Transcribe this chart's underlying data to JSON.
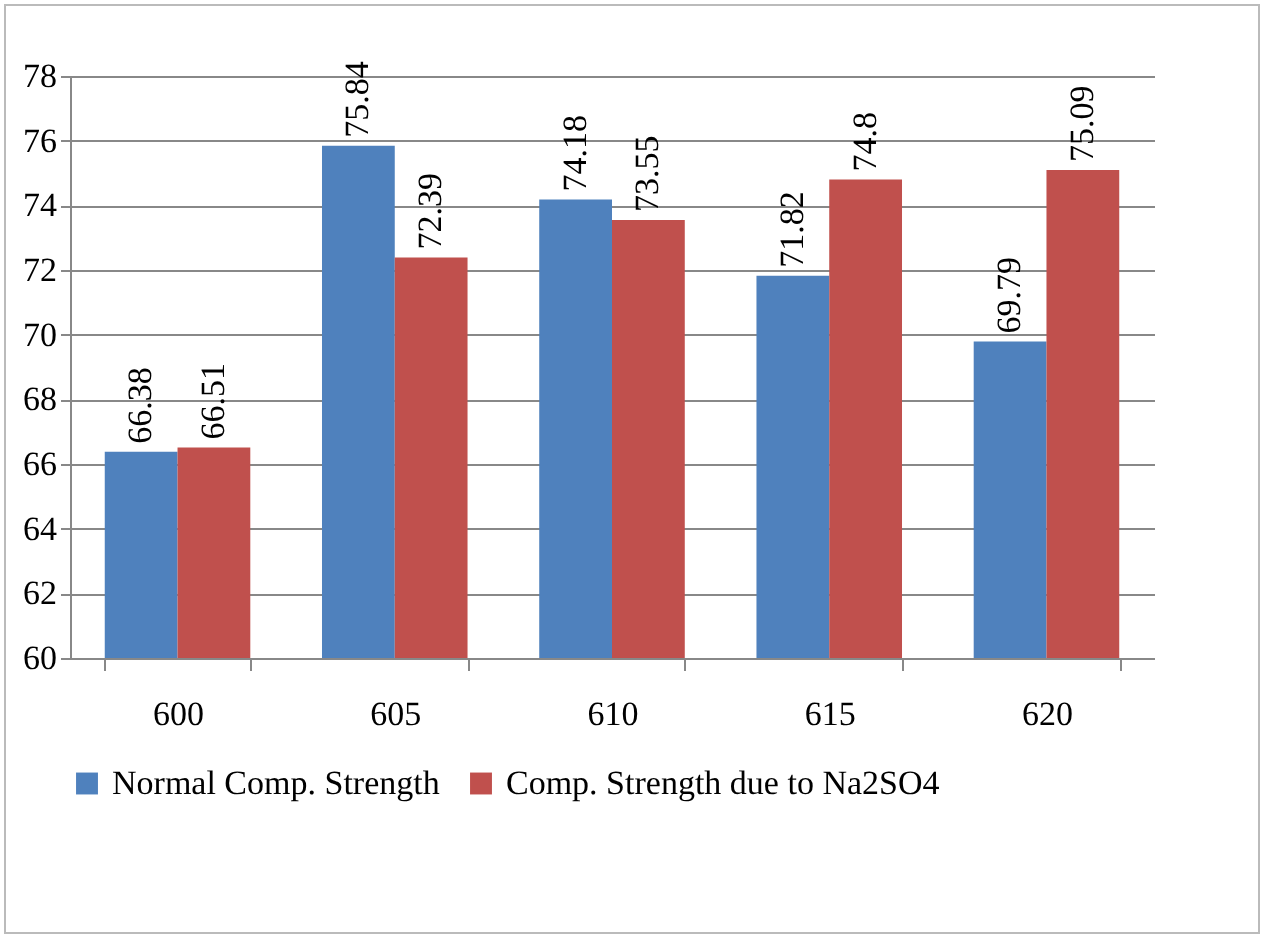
{
  "chart_data": {
    "type": "bar",
    "categories": [
      "600",
      "605",
      "610",
      "615",
      "620"
    ],
    "series": [
      {
        "name": "Normal Comp. Strength",
        "color": "#4f81bd",
        "values": [
          66.38,
          75.84,
          74.18,
          71.82,
          69.79
        ]
      },
      {
        "name": "Comp. Strength due to Na2SO4",
        "color": "#c0504d",
        "values": [
          66.51,
          72.39,
          73.55,
          74.8,
          75.09
        ]
      }
    ],
    "ylim": [
      60,
      78
    ],
    "yticks": [
      60,
      62,
      64,
      66,
      68,
      70,
      72,
      74,
      76,
      78
    ],
    "grid": "y",
    "data_labels": true,
    "legend": "bottom"
  }
}
